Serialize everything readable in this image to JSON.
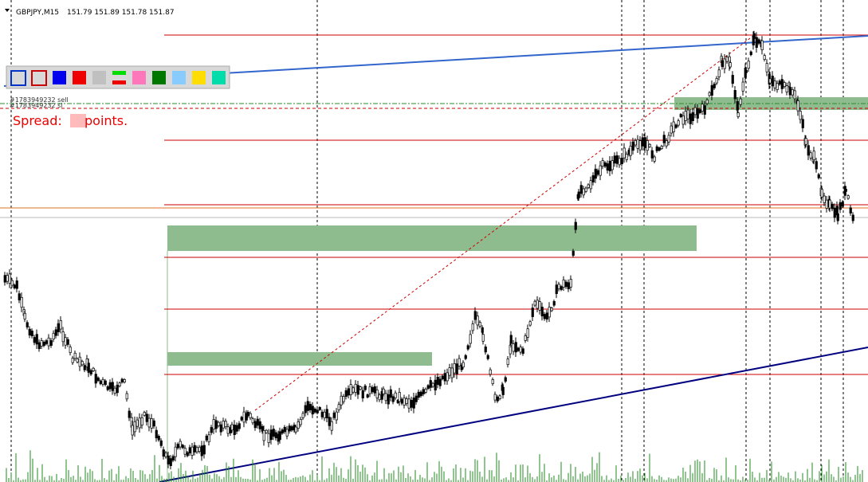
{
  "header": {
    "symbol": "GBPJPY,M15",
    "quotes": "151.79 151.89 151.78 151.87"
  },
  "orders": [
    "#1783949232 sell",
    "#1783949232 sl"
  ],
  "spread": {
    "label": "Spread:",
    "unit": "points."
  }
}
